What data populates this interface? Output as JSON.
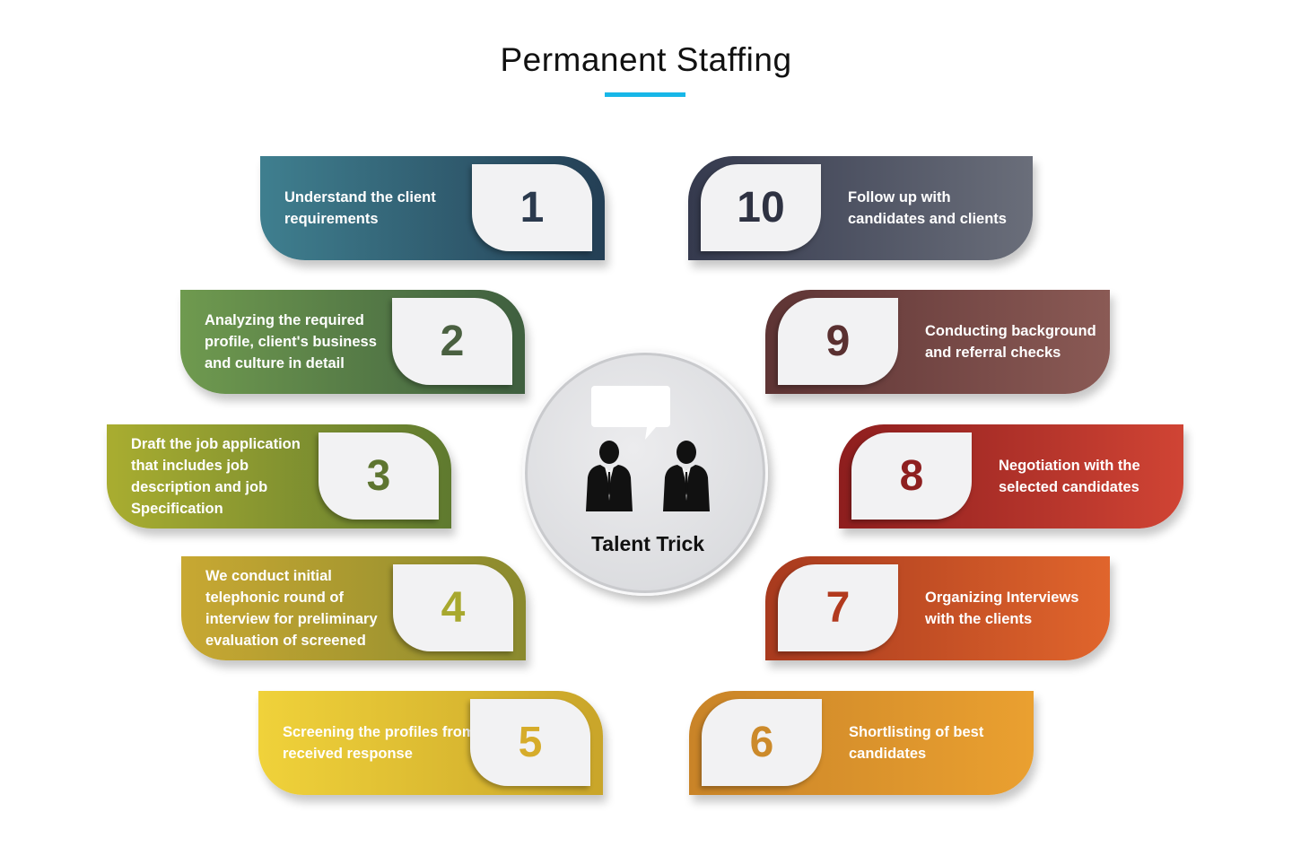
{
  "title": "Permanent Staffing",
  "center": {
    "label": "Talent Trick",
    "icon": "business-people-chat-icon"
  },
  "steps": [
    {
      "num": "1",
      "text": "Understand the client requirements",
      "color_from": "#3f7f8f",
      "color_to": "#243f55",
      "num_color": "#2b3a4d"
    },
    {
      "num": "2",
      "text": "Analyzing the required profile, client's business and culture in detail",
      "color_from": "#6f9a4f",
      "color_to": "#3f5f3f",
      "num_color": "#4a6040"
    },
    {
      "num": "3",
      "text": "Draft the job application that includes job description and job Specification",
      "color_from": "#a9ad30",
      "color_to": "#5f7a2f",
      "num_color": "#5e7530"
    },
    {
      "num": "4",
      "text": "We conduct initial telephonic round of interview for preliminary evaluation of screened",
      "color_from": "#c8a832",
      "color_to": "#8a8a2e",
      "num_color": "#a8a82e"
    },
    {
      "num": "5",
      "text": "Screening the profiles from received response",
      "color_from": "#f0d23a",
      "color_to": "#c9a52a",
      "num_color": "#d6ac2a"
    },
    {
      "num": "6",
      "text": "Shortlisting of best candidates",
      "color_from": "#c98428",
      "color_to": "#eaa030",
      "num_color": "#cc8a2a"
    },
    {
      "num": "7",
      "text": "Organizing Interviews with the clients",
      "color_from": "#a83a1e",
      "color_to": "#e0652c",
      "num_color": "#b23a1e"
    },
    {
      "num": "8",
      "text": "Negotiation with the selected candidates",
      "color_from": "#8e1e1e",
      "color_to": "#d04434",
      "num_color": "#8e1f1f"
    },
    {
      "num": "9",
      "text": "Conducting background and referral checks",
      "color_from": "#5e3434",
      "color_to": "#8a5a55",
      "num_color": "#5a3030"
    },
    {
      "num": "10",
      "text": "Follow up with candidates and clients",
      "color_from": "#353a4e",
      "color_to": "#6a6e7a",
      "num_color": "#2e3242"
    }
  ]
}
